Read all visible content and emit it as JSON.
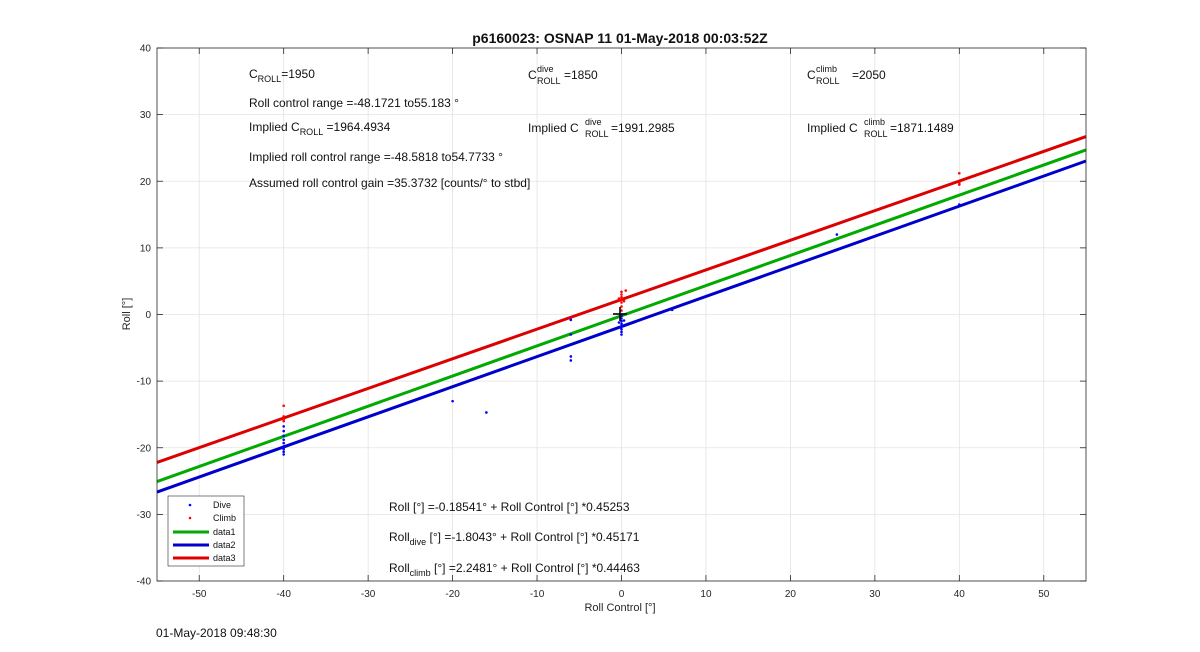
{
  "chart_data": {
    "type": "scatter",
    "title": "p6160023: OSNAP 11 01-May-2018 00:03:52Z",
    "xlabel": "Roll Control [°]",
    "ylabel": "Roll [°]",
    "xlim": [
      -55,
      55
    ],
    "ylim": [
      -40,
      40
    ],
    "xticks": [
      -50,
      -40,
      -30,
      -20,
      -10,
      0,
      10,
      20,
      30,
      40,
      50
    ],
    "yticks": [
      -40,
      -30,
      -20,
      -10,
      0,
      10,
      20,
      30,
      40
    ],
    "grid": true,
    "legend_position": "bottom-left",
    "series": [
      {
        "name": "Dive",
        "kind": "points",
        "color": "#0000ff",
        "points": [
          [
            -40,
            -16.8
          ],
          [
            -40,
            -17.5
          ],
          [
            -40,
            -18.2
          ],
          [
            -40,
            -18.8
          ],
          [
            -40,
            -19.3
          ],
          [
            -40,
            -19.8
          ],
          [
            -40,
            -20.2
          ],
          [
            -40,
            -20.6
          ],
          [
            -40,
            -21.0
          ],
          [
            -20,
            -13.0
          ],
          [
            -16,
            -14.7
          ],
          [
            -6,
            -0.8
          ],
          [
            -6,
            -3.0
          ],
          [
            -6,
            -6.3
          ],
          [
            -6,
            -6.9
          ],
          [
            0,
            -0.2
          ],
          [
            0,
            -0.6
          ],
          [
            0,
            -1.0
          ],
          [
            0,
            -1.4
          ],
          [
            0,
            -1.8
          ],
          [
            0,
            -2.2
          ],
          [
            0,
            -2.6
          ],
          [
            0,
            -3.0
          ],
          [
            -0.3,
            -1.2
          ],
          [
            0.3,
            -0.9
          ],
          [
            6,
            0.7
          ],
          [
            25.5,
            12.0
          ],
          [
            40,
            16.5
          ]
        ]
      },
      {
        "name": "Climb",
        "kind": "points",
        "color": "#ff0000",
        "points": [
          [
            -40,
            -13.7
          ],
          [
            -40,
            -15.3
          ],
          [
            -40,
            -15.7
          ],
          [
            -40,
            -16.0
          ],
          [
            0,
            0.6
          ],
          [
            0,
            1.2
          ],
          [
            0,
            1.8
          ],
          [
            0,
            2.2
          ],
          [
            0,
            2.6
          ],
          [
            0,
            3.0
          ],
          [
            0,
            3.4
          ],
          [
            0.5,
            3.6
          ],
          [
            -0.3,
            2.4
          ],
          [
            0.3,
            2.0
          ],
          [
            40,
            21.2
          ],
          [
            40,
            19.8
          ],
          [
            40,
            19.5
          ]
        ]
      },
      {
        "name": "data1",
        "kind": "line",
        "color": "#00aa00",
        "intercept": -0.18541,
        "slope": 0.45253
      },
      {
        "name": "data2",
        "kind": "line",
        "color": "#0000cc",
        "intercept": -1.8043,
        "slope": 0.45171
      },
      {
        "name": "data3",
        "kind": "line",
        "color": "#dd0000",
        "intercept": 2.2481,
        "slope": 0.44463
      }
    ]
  },
  "annotations": {
    "c_roll": {
      "main": "C",
      "sub": "ROLL",
      "rest": "=1950"
    },
    "c_roll_dive": {
      "main": "C",
      "sup": "dive",
      "sub": "ROLL",
      "rest": " =1850"
    },
    "c_roll_climb": {
      "main": "C",
      "sup": "climb",
      "sub": "ROLL",
      "rest": " =2050"
    },
    "roll_range": "Roll control range =-48.1721 to55.183 °",
    "implied_c_roll": {
      "pre": "Implied C",
      "sub": "ROLL",
      "rest": " =1964.4934"
    },
    "implied_c_dive": {
      "pre": "Implied C",
      "sup": "dive",
      "sub": "ROLL",
      "rest": "=1991.2985"
    },
    "implied_c_climb": {
      "pre": "Implied C",
      "sup": "climb",
      "sub": "ROLL",
      "rest": " =1871.1489"
    },
    "implied_range": "Implied roll control range =-48.5818 to54.7733 °",
    "gain": "Assumed roll control gain =35.3732 [counts/° to stbd]",
    "eq1": "Roll [°] =-0.18541° + Roll Control [°] *0.45253",
    "eq2": {
      "pre": "Roll",
      "sub": "dive",
      "rest": " [°] =-1.8043° + Roll Control [°] *0.45171"
    },
    "eq3": {
      "pre": "Roll",
      "sub": "climb",
      "rest": " [°] =2.2481° + Roll Control [°] *0.44463"
    }
  },
  "footer": "01-May-2018 09:48:30"
}
